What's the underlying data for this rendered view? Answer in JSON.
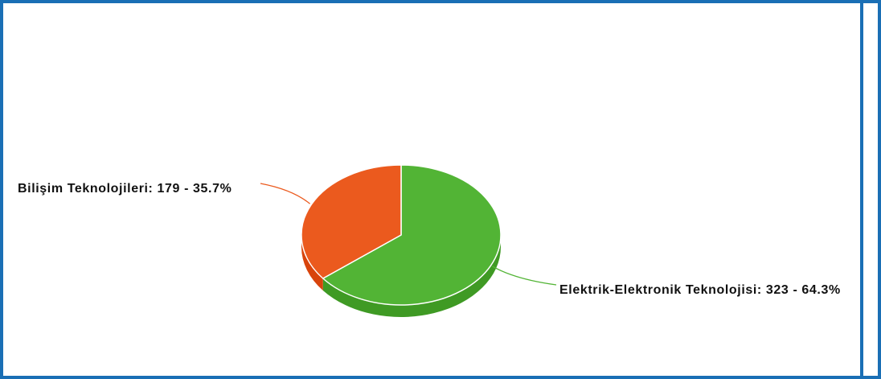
{
  "chart_data": {
    "type": "pie",
    "style": "3d",
    "title": "",
    "slices": [
      {
        "name": "Elektrik-Elektronik Teknolojisi",
        "value": 323,
        "percent": 64.3,
        "label": "Elektrik-Elektronik Teknolojisi: 323 - 64.3%",
        "color": "#52b435",
        "side_color": "#3f9a24"
      },
      {
        "name": "Bilişim Teknolojileri",
        "value": 179,
        "percent": 35.7,
        "label": "Bilişim Teknolojileri: 179 - 35.7%",
        "color": "#eb5a1e",
        "side_color": "#d8440c"
      }
    ],
    "start_angle_deg": 0,
    "direction": "clockwise",
    "legend": "none"
  },
  "colors": {
    "frame_border": "#1a6fb5",
    "background": "#ffffff"
  }
}
